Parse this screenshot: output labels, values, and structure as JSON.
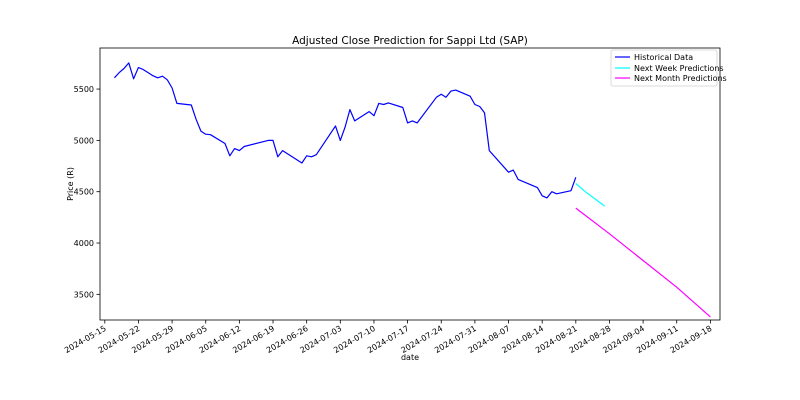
{
  "chart_data": {
    "type": "line",
    "title": "Adjusted Close Prediction for Sappi Ltd (SAP)",
    "xlabel": "date",
    "ylabel": "Price (R)",
    "xlim": [
      "2024-05-14",
      "2024-09-20"
    ],
    "ylim": [
      3250,
      5900
    ],
    "x_ticks": [
      "2024-05-15",
      "2024-05-22",
      "2024-05-29",
      "2024-06-05",
      "2024-06-12",
      "2024-06-19",
      "2024-06-26",
      "2024-07-03",
      "2024-07-10",
      "2024-07-17",
      "2024-07-24",
      "2024-07-31",
      "2024-08-07",
      "2024-08-14",
      "2024-08-21",
      "2024-08-28",
      "2024-09-04",
      "2024-09-11",
      "2024-09-18"
    ],
    "y_ticks": [
      3500,
      4000,
      4500,
      5000,
      5500
    ],
    "grid": false,
    "legend_position": "top-right",
    "series": [
      {
        "name": "Historical Data",
        "color": "#0000ff",
        "points": [
          [
            "2024-05-17",
            5610
          ],
          [
            "2024-05-18",
            5660
          ],
          [
            "2024-05-19",
            5700
          ],
          [
            "2024-05-20",
            5755
          ],
          [
            "2024-05-21",
            5600
          ],
          [
            "2024-05-22",
            5710
          ],
          [
            "2024-05-23",
            5690
          ],
          [
            "2024-05-24",
            5660
          ],
          [
            "2024-05-25",
            5630
          ],
          [
            "2024-05-26",
            5610
          ],
          [
            "2024-05-27",
            5625
          ],
          [
            "2024-05-28",
            5590
          ],
          [
            "2024-05-29",
            5510
          ],
          [
            "2024-05-30",
            5360
          ],
          [
            "2024-06-02",
            5345
          ],
          [
            "2024-06-03",
            5205
          ],
          [
            "2024-06-04",
            5090
          ],
          [
            "2024-06-05",
            5060
          ],
          [
            "2024-06-06",
            5055
          ],
          [
            "2024-06-09",
            4970
          ],
          [
            "2024-06-10",
            4850
          ],
          [
            "2024-06-11",
            4920
          ],
          [
            "2024-06-12",
            4900
          ],
          [
            "2024-06-13",
            4940
          ],
          [
            "2024-06-18",
            5000
          ],
          [
            "2024-06-19",
            5000
          ],
          [
            "2024-06-20",
            4840
          ],
          [
            "2024-06-21",
            4900
          ],
          [
            "2024-06-25",
            4780
          ],
          [
            "2024-06-26",
            4850
          ],
          [
            "2024-06-27",
            4840
          ],
          [
            "2024-06-28",
            4860
          ],
          [
            "2024-07-02",
            5140
          ],
          [
            "2024-07-03",
            5000
          ],
          [
            "2024-07-04",
            5130
          ],
          [
            "2024-07-05",
            5300
          ],
          [
            "2024-07-06",
            5190
          ],
          [
            "2024-07-09",
            5280
          ],
          [
            "2024-07-10",
            5240
          ],
          [
            "2024-07-11",
            5360
          ],
          [
            "2024-07-12",
            5350
          ],
          [
            "2024-07-13",
            5365
          ],
          [
            "2024-07-16",
            5320
          ],
          [
            "2024-07-17",
            5170
          ],
          [
            "2024-07-18",
            5190
          ],
          [
            "2024-07-19",
            5170
          ],
          [
            "2024-07-23",
            5420
          ],
          [
            "2024-07-24",
            5450
          ],
          [
            "2024-07-25",
            5420
          ],
          [
            "2024-07-26",
            5480
          ],
          [
            "2024-07-27",
            5490
          ],
          [
            "2024-07-30",
            5430
          ],
          [
            "2024-07-31",
            5350
          ],
          [
            "2024-08-01",
            5330
          ],
          [
            "2024-08-02",
            5270
          ],
          [
            "2024-08-03",
            4900
          ],
          [
            "2024-08-07",
            4690
          ],
          [
            "2024-08-08",
            4710
          ],
          [
            "2024-08-09",
            4620
          ],
          [
            "2024-08-13",
            4540
          ],
          [
            "2024-08-14",
            4460
          ],
          [
            "2024-08-15",
            4440
          ],
          [
            "2024-08-16",
            4500
          ],
          [
            "2024-08-17",
            4480
          ],
          [
            "2024-08-20",
            4510
          ],
          [
            "2024-08-21",
            4640
          ]
        ]
      },
      {
        "name": "Next Week Predictions",
        "color": "#00ffff",
        "points": [
          [
            "2024-08-21",
            4580
          ],
          [
            "2024-08-22",
            4540
          ],
          [
            "2024-08-23",
            4500
          ],
          [
            "2024-08-24",
            4465
          ],
          [
            "2024-08-25",
            4430
          ],
          [
            "2024-08-26",
            4395
          ],
          [
            "2024-08-27",
            4360
          ]
        ]
      },
      {
        "name": "Next Month Predictions",
        "color": "#ff00ff",
        "points": [
          [
            "2024-08-21",
            4340
          ],
          [
            "2024-08-28",
            4090
          ],
          [
            "2024-09-04",
            3830
          ],
          [
            "2024-09-11",
            3570
          ],
          [
            "2024-09-18",
            3280
          ]
        ]
      }
    ]
  }
}
